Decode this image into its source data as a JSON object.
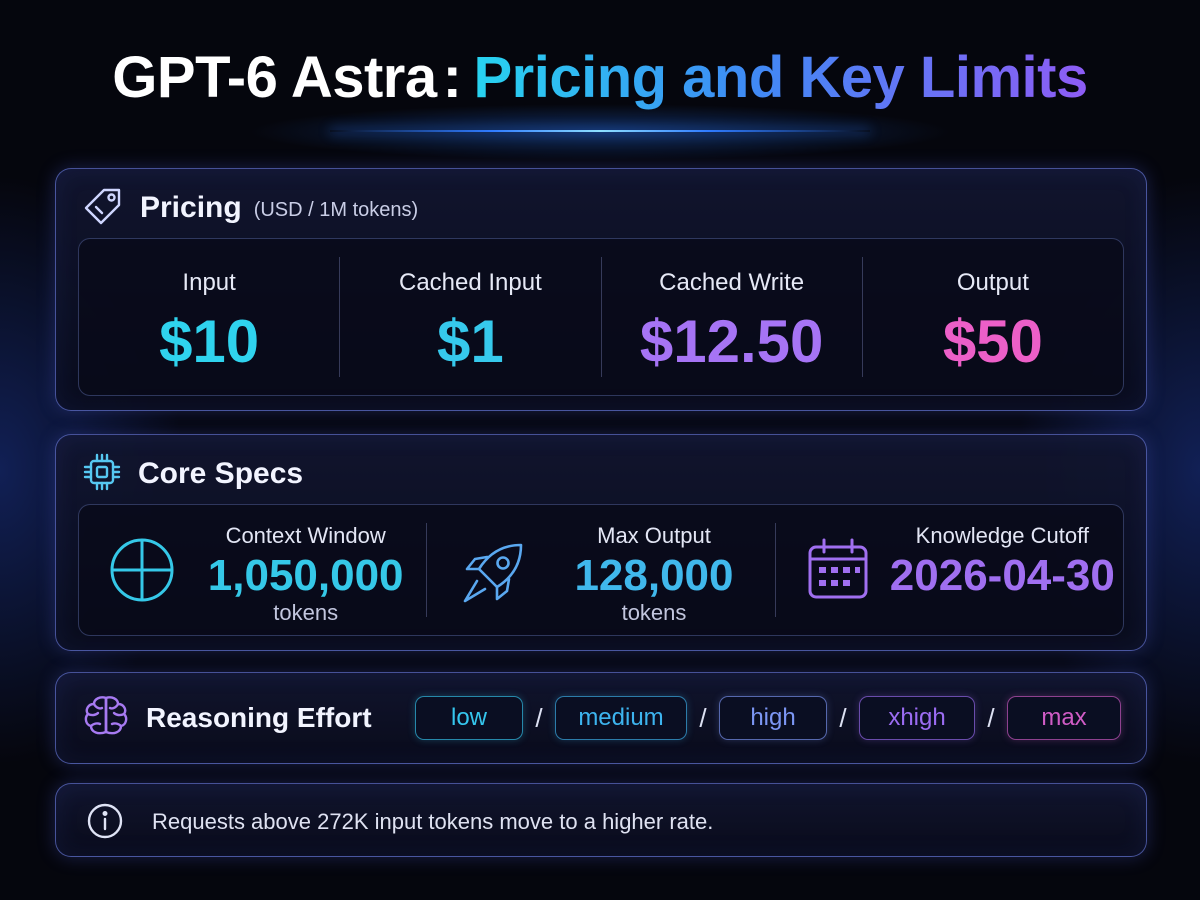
{
  "title": {
    "main": "GPT-6 Astra",
    "colon": ":",
    "accent": "Pricing and Key Limits"
  },
  "pricing": {
    "heading": "Pricing",
    "unit_note": "(USD / 1M tokens)",
    "icon": "price-tag-icon",
    "items": [
      {
        "label": "Input",
        "value": "$10",
        "color": "#2fd3ee"
      },
      {
        "label": "Cached Input",
        "value": "$1",
        "color": "#36c9ec"
      },
      {
        "label": "Cached Write",
        "value": "$12.50",
        "color": "#a674f5"
      },
      {
        "label": "Output",
        "value": "$50",
        "color": "#ec5fc8"
      }
    ]
  },
  "specs": {
    "heading": "Core Specs",
    "icon": "chip-icon",
    "items": [
      {
        "label": "Context Window",
        "value": "1,050,000",
        "unit": "tokens",
        "icon": "crosshair-icon",
        "color": "#35c8e8"
      },
      {
        "label": "Max Output",
        "value": "128,000",
        "unit": "tokens",
        "icon": "rocket-icon",
        "color": "#40b8ec"
      },
      {
        "label": "Knowledge Cutoff",
        "value": "2026-04-30",
        "unit": "",
        "icon": "calendar-icon",
        "color": "#a06ff0"
      }
    ]
  },
  "reasoning": {
    "heading": "Reasoning Effort",
    "icon": "brain-icon",
    "separator": "/",
    "levels": [
      {
        "label": "low",
        "color": "#35c6ee"
      },
      {
        "label": "medium",
        "color": "#3db4ef"
      },
      {
        "label": "high",
        "color": "#7c96f4"
      },
      {
        "label": "xhigh",
        "color": "#9b6cf2"
      },
      {
        "label": "max",
        "color": "#d05cc6"
      }
    ]
  },
  "note": {
    "icon": "info-icon",
    "text": "Requests above 272K input tokens move to a higher rate."
  }
}
